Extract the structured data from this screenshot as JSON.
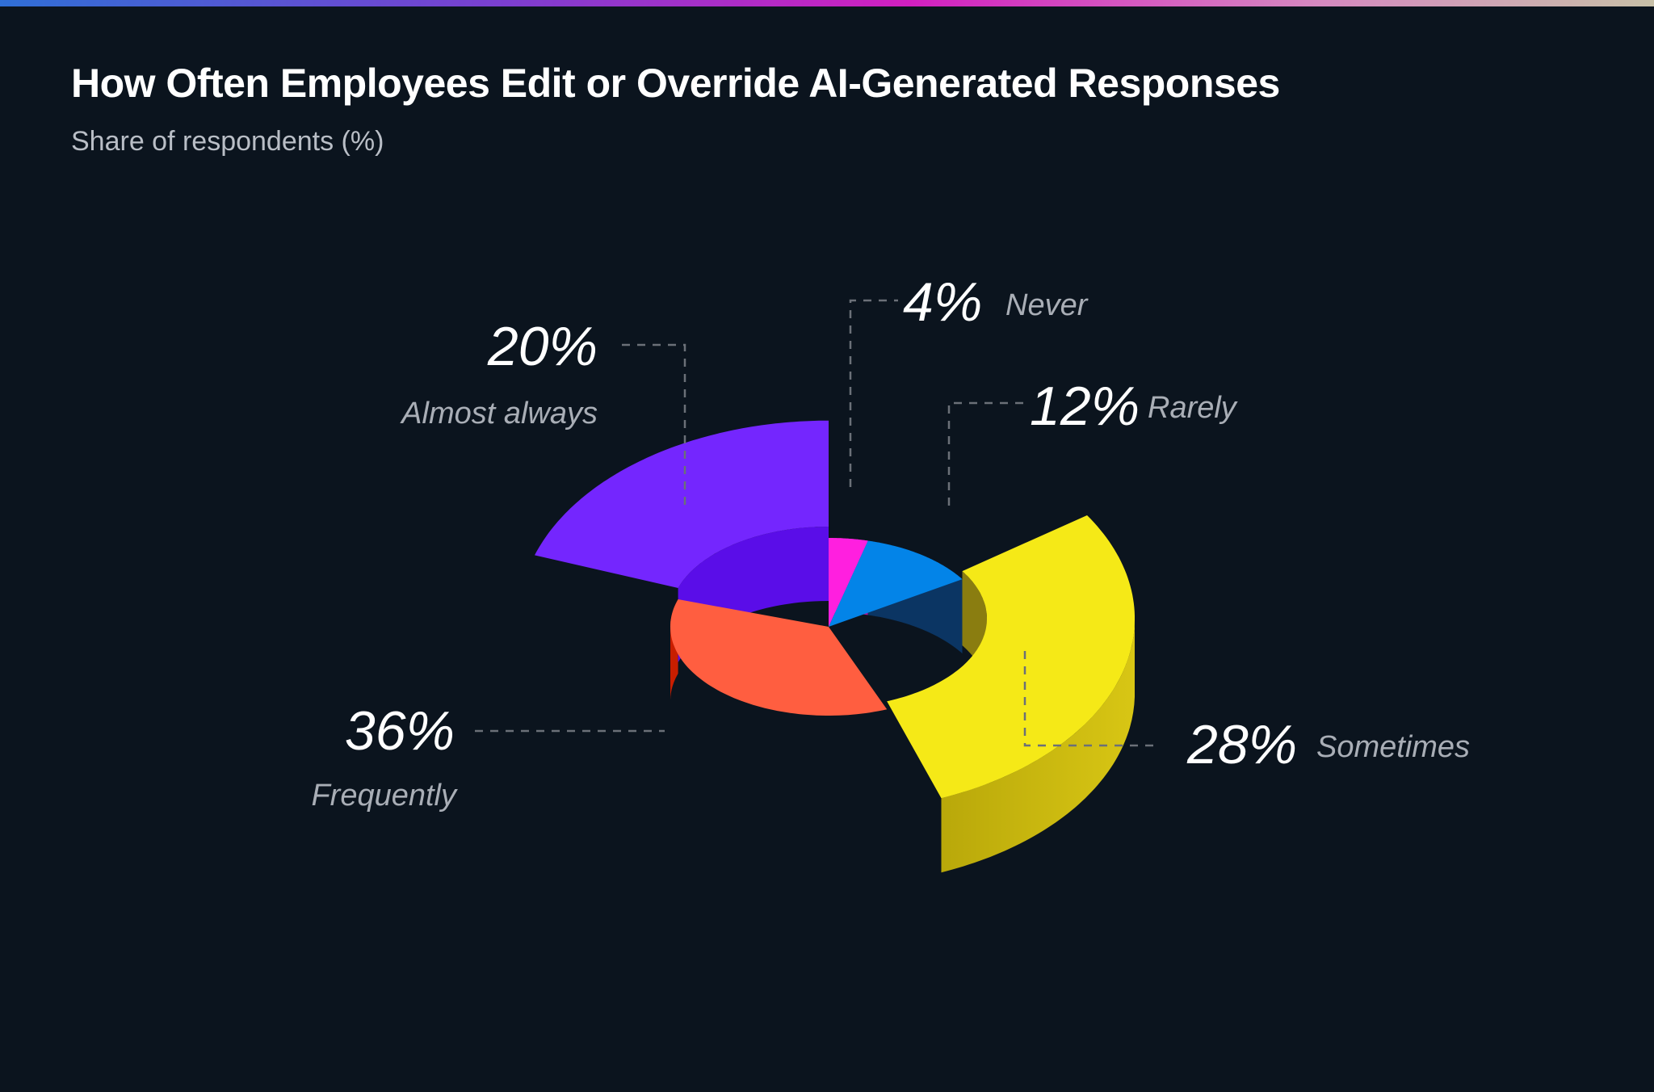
{
  "chart_data": {
    "type": "pie",
    "style": "3d-donut",
    "title": "How Often Employees Edit or Override AI-Generated Responses",
    "subtitle": "Share of respondents (%)",
    "unit": "%",
    "slices": [
      {
        "label": "Never",
        "value": 4,
        "display": "4%",
        "color": "#ff1fdf"
      },
      {
        "label": "Rarely",
        "value": 12,
        "display": "12%",
        "color": "#0384e8"
      },
      {
        "label": "Sometimes",
        "value": 28,
        "display": "28%",
        "color": "#f5e917"
      },
      {
        "label": "Frequently",
        "value": 36,
        "display": "36%",
        "color": "#ff5e40"
      },
      {
        "label": "Almost always",
        "value": 20,
        "display": "20%",
        "color": "#7426fe"
      }
    ]
  },
  "theme": {
    "background": "#0b141e",
    "label_color": "#a9aeb6"
  }
}
